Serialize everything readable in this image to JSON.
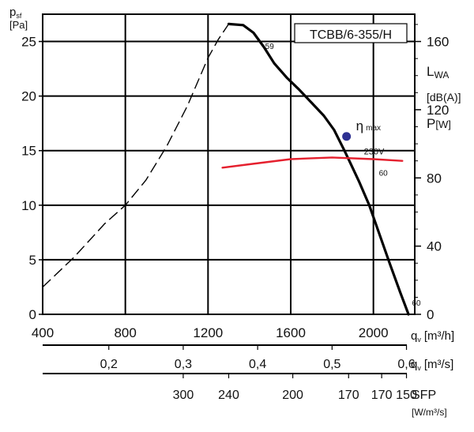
{
  "chart_data": {
    "type": "line",
    "title": "TCBB/6-355/H",
    "y_left": {
      "label": "p",
      "label_sub": "sf",
      "unit": "[Pa]",
      "range": [
        0,
        27.5
      ],
      "ticks": [
        0,
        5,
        10,
        15,
        20,
        25
      ]
    },
    "x_bottom": {
      "label": "q",
      "label_sub": "v",
      "unit": "[m³/h]",
      "range": [
        400,
        2200
      ],
      "ticks": [
        400,
        800,
        1200,
        1600,
        2000
      ]
    },
    "x_second": {
      "label": "q",
      "label_sub": "v",
      "unit": "[m³/s]",
      "ticks": [
        {
          "label": "0,2",
          "m3h": 720
        },
        {
          "label": "0,3",
          "m3h": 1080
        },
        {
          "label": "0,4",
          "m3h": 1440
        },
        {
          "label": "0,5",
          "m3h": 1800
        },
        {
          "label": "0,6",
          "m3h": 2160
        }
      ]
    },
    "sfp_axis": {
      "label": "SFP",
      "unit": "[W/m³/s]",
      "ticks": [
        {
          "label": "300",
          "m3h": 1080
        },
        {
          "label": "240",
          "m3h": 1300
        },
        {
          "label": "200",
          "m3h": 1610
        },
        {
          "label": "170",
          "m3h": 1880
        },
        {
          "label": "170",
          "m3h": 2040
        },
        {
          "label": "150",
          "m3h": 2160
        }
      ]
    },
    "right_labels": {
      "lwa": "L",
      "lwa_sub": "WA",
      "lwa_unit": "[dB(A)]",
      "power": "P",
      "power_unit": "[W]",
      "lwa_color": "#2e3192",
      "power_color": "#e5202e"
    },
    "y_right": {
      "range_w": [
        0,
        176
      ],
      "ticks": [
        0,
        40,
        80,
        120,
        160
      ]
    },
    "series": [
      {
        "kind": "unstable",
        "style": "dashed",
        "x": [
          400,
          550,
          700,
          800,
          900,
          1000,
          1100,
          1200,
          1250,
          1300
        ],
        "y": [
          2.5,
          5.2,
          8.3,
          10,
          12.3,
          15.4,
          19.1,
          23.5,
          25.2,
          26.6
        ]
      },
      {
        "kind": "stable",
        "style": "solid",
        "x": [
          1300,
          1370,
          1420,
          1470,
          1520,
          1580,
          1640,
          1700,
          1760,
          1810,
          1860,
          1890,
          1930,
          1980,
          2030,
          2080,
          2130,
          2170
        ],
        "y": [
          26.6,
          26.5,
          25.8,
          24.5,
          23.0,
          21.7,
          20.6,
          19.4,
          18.2,
          16.9,
          15.0,
          13.8,
          12.2,
          10.0,
          7.3,
          4.6,
          2.0,
          0
        ]
      },
      {
        "kind": "power",
        "name": "230V",
        "color": "#e5202e",
        "x": [
          1270,
          1400,
          1600,
          1800,
          2000,
          2140
        ],
        "y": [
          86,
          88,
          91,
          92,
          91,
          90
        ]
      }
    ],
    "eta_max": {
      "label": "η",
      "label_sub": "max",
      "x": 1870,
      "y": 16.3,
      "color": "#2e3192"
    },
    "sound_labels": [
      {
        "text": "59",
        "x": 1465,
        "y": 24.3
      },
      {
        "text": "60",
        "x": 2015,
        "y": 12.7
      },
      {
        "text": "60",
        "x": 2175,
        "y": 0.8
      }
    ],
    "grid": true
  }
}
